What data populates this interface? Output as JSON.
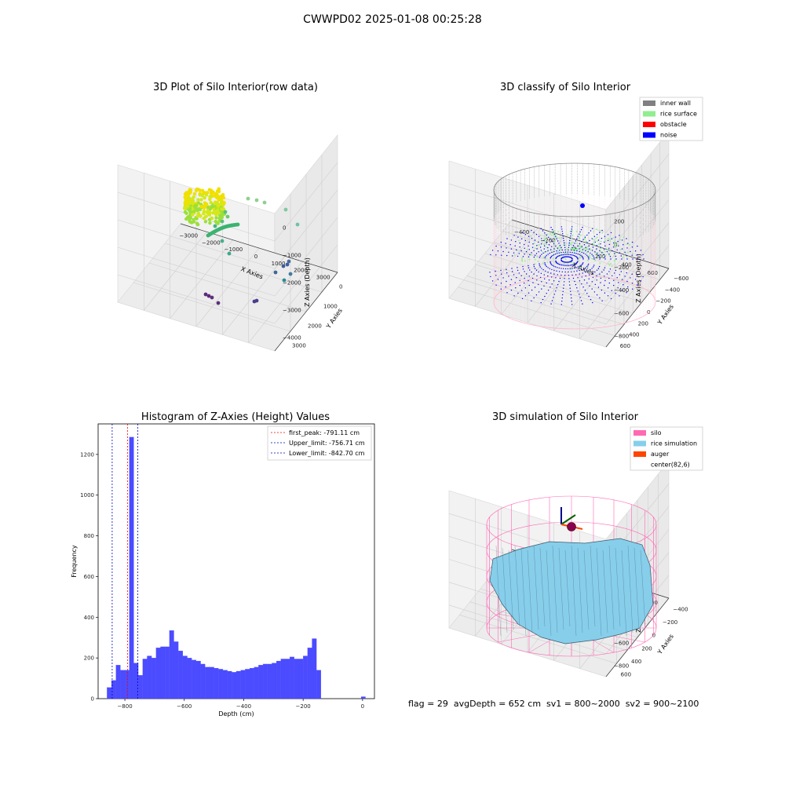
{
  "suptitle": "CWWPD02 2025-01-08 00:25:28",
  "footer": "flag = 29  avgDepth = 652 cm  sv1 = 800~2000  sv2 = 900~2100",
  "colors": {
    "hist_bar": "#4b4bff",
    "peak_line": "#ff0000",
    "limit_line": "#0000cc",
    "inner_wall": "#808080",
    "rice_surface": "#90ee90",
    "obstacle": "#ff0000",
    "noise": "#0000ff",
    "silo": "#ff69b4",
    "rice_simulation": "#87ceeb",
    "auger": "#ff4500"
  },
  "chart_data": [
    {
      "type": "scatter",
      "title": "3D Plot of Silo Interior(row data)",
      "xlabel": "X Axies",
      "ylabel": "Y Axies",
      "zlabel": "Z Axies (Depth)",
      "xticks": [
        "−3000",
        "−2000",
        "−1000",
        "0",
        "1000",
        "2000",
        "3000"
      ],
      "yticks": [
        "0",
        "1000",
        "2000",
        "3000"
      ],
      "zticks": [
        "0",
        "−1000",
        "−2000",
        "−3000",
        "−4000"
      ]
    },
    {
      "type": "scatter",
      "title": "3D classify of Silo Interior",
      "xlabel": "X Axies",
      "ylabel": "Y Axies",
      "zlabel": "Z Axies (Depth)",
      "xticks": [
        "−400",
        "−200",
        "0",
        "200",
        "400",
        "600"
      ],
      "yticks": [
        "−600",
        "−400",
        "−200",
        "0",
        "200",
        "400",
        "600"
      ],
      "zticks": [
        "200",
        "0",
        "−200",
        "−400",
        "−600",
        "−800"
      ],
      "legend": [
        "inner wall",
        "rice surface",
        "obstacle",
        "noise"
      ],
      "legend_position": "top-right"
    },
    {
      "type": "bar",
      "title": "Histogram of Z-Axies (Height) Values",
      "xlabel": "Depth (cm)",
      "ylabel": "Frequency",
      "xlim": [
        -890,
        40
      ],
      "ylim": [
        0,
        1350
      ],
      "xticks": [
        -800,
        -600,
        -400,
        -200,
        0
      ],
      "yticks": [
        0,
        200,
        400,
        600,
        800,
        1000,
        1200
      ],
      "bin_width": 15,
      "bin_starts": [
        -860,
        -845,
        -830,
        -815,
        -800,
        -785,
        -770,
        -755,
        -740,
        -725,
        -710,
        -695,
        -680,
        -665,
        -650,
        -635,
        -620,
        -605,
        -590,
        -575,
        -560,
        -545,
        -530,
        -515,
        -500,
        -485,
        -470,
        -455,
        -440,
        -425,
        -410,
        -395,
        -380,
        -365,
        -350,
        -335,
        -320,
        -305,
        -290,
        -275,
        -260,
        -245,
        -230,
        -215,
        -200,
        -185,
        -170,
        -155,
        -140,
        -125,
        -110,
        -95
      ],
      "values": [
        55,
        90,
        165,
        140,
        140,
        1285,
        175,
        115,
        195,
        210,
        200,
        250,
        255,
        255,
        335,
        280,
        235,
        210,
        200,
        190,
        185,
        170,
        155,
        155,
        150,
        145,
        140,
        135,
        130,
        135,
        140,
        145,
        150,
        155,
        165,
        170,
        170,
        175,
        185,
        195,
        195,
        205,
        195,
        195,
        210,
        250,
        295,
        140,
        0,
        0,
        0,
        0
      ],
      "extra_bars": [
        {
          "start": -5,
          "value": 10
        }
      ],
      "vlines": [
        {
          "x": -791.11,
          "label": "first_peak: -791.11 cm",
          "style": "peak"
        },
        {
          "x": -756.71,
          "label": "Upper_limit: -756.71 cm",
          "style": "limit"
        },
        {
          "x": -842.7,
          "label": "Lower_limit: -842.70 cm",
          "style": "limit"
        }
      ],
      "legend_position": "top-right"
    },
    {
      "type": "scatter",
      "title": "3D simulation of Silo Interior",
      "xlabel": "X Axies",
      "ylabel": "Y Axies",
      "zlabel": "Z Axies (Depth)",
      "xticks": [
        "−400",
        "−200",
        "0",
        "200",
        "400",
        "600"
      ],
      "yticks": [
        "−400",
        "−200",
        "0",
        "200",
        "400",
        "600"
      ],
      "zticks": [
        "200",
        "0",
        "−200",
        "−400",
        "−600",
        "−800"
      ],
      "legend": [
        "silo",
        "rice simulation",
        "auger",
        "center(82,6)"
      ],
      "legend_position": "top-right"
    }
  ]
}
